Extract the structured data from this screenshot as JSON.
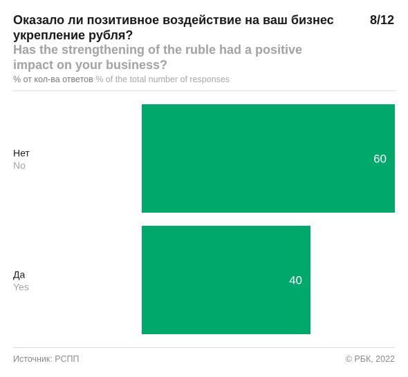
{
  "header": {
    "title_ru": "Оказало ли позитивное воздействие на ваш бизнес укрепление рубля?",
    "title_en": "Has the strengthening of the ruble had a positive impact on your business?",
    "page_counter": "8/12",
    "units_ru": "% от кол-ва ответов",
    "units_en": "% of the total number of responses"
  },
  "chart_data": {
    "type": "bar",
    "orientation": "horizontal",
    "categories": [
      {
        "label_ru": "Нет",
        "label_en": "No"
      },
      {
        "label_ru": "Да",
        "label_en": "Yes"
      }
    ],
    "values": [
      60,
      40
    ],
    "xlim": [
      0,
      60
    ],
    "grid": false,
    "bar_color": "#00a86b"
  },
  "footer": {
    "source": "Источник: РСПП",
    "copyright": "© РБК, 2022"
  }
}
